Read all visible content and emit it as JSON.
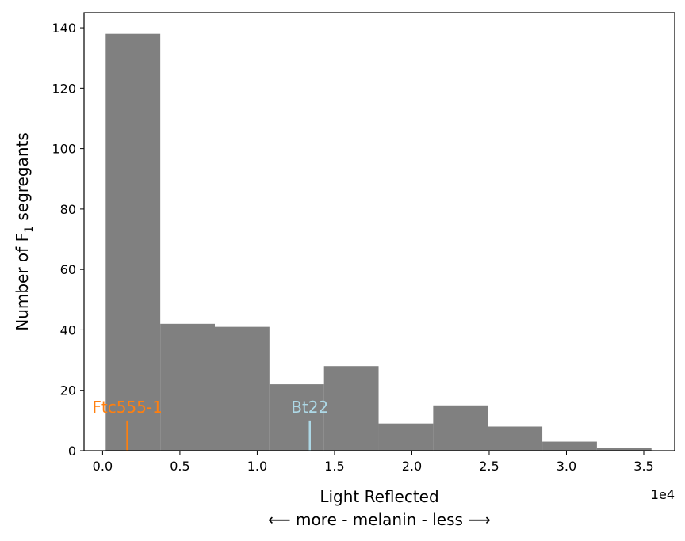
{
  "chart_data": {
    "type": "bar",
    "title": "",
    "xlabel": "Light Reflected",
    "xlabel_sub": "⟵ more - melanin - less ⟶",
    "ylabel": "Number of F",
    "ylabel_subscript": "1",
    "ylabel_tail": " segregants",
    "x_offset_text": "1e4",
    "xlim": [
      -1200,
      37000
    ],
    "ylim": [
      0,
      145
    ],
    "x_ticks": [
      0,
      5000,
      10000,
      15000,
      20000,
      25000,
      30000,
      35000
    ],
    "x_tick_labels": [
      "0.0",
      "0.5",
      "1.0",
      "1.5",
      "2.0",
      "2.5",
      "3.0",
      "3.5"
    ],
    "y_ticks": [
      0,
      20,
      40,
      60,
      80,
      100,
      120,
      140
    ],
    "y_tick_labels": [
      "0",
      "20",
      "40",
      "60",
      "80",
      "100",
      "120",
      "140"
    ],
    "bar_color": "#808080",
    "bins": [
      {
        "x0": 200,
        "x1": 3730,
        "count": 138
      },
      {
        "x0": 3730,
        "x1": 7260,
        "count": 42
      },
      {
        "x0": 7260,
        "x1": 10790,
        "count": 41
      },
      {
        "x0": 10790,
        "x1": 14320,
        "count": 22
      },
      {
        "x0": 14320,
        "x1": 17850,
        "count": 28
      },
      {
        "x0": 17850,
        "x1": 21380,
        "count": 9
      },
      {
        "x0": 21380,
        "x1": 24910,
        "count": 15
      },
      {
        "x0": 24910,
        "x1": 28440,
        "count": 8
      },
      {
        "x0": 28440,
        "x1": 31970,
        "count": 3
      },
      {
        "x0": 31970,
        "x1": 35500,
        "count": 1
      }
    ],
    "annotations": [
      {
        "label": "Ftc555-1",
        "x": 1600,
        "marker_top": 10,
        "color": "#ff7f0e"
      },
      {
        "label": "Bt22",
        "x": 13400,
        "marker_top": 10,
        "color": "#add8e6"
      }
    ]
  }
}
